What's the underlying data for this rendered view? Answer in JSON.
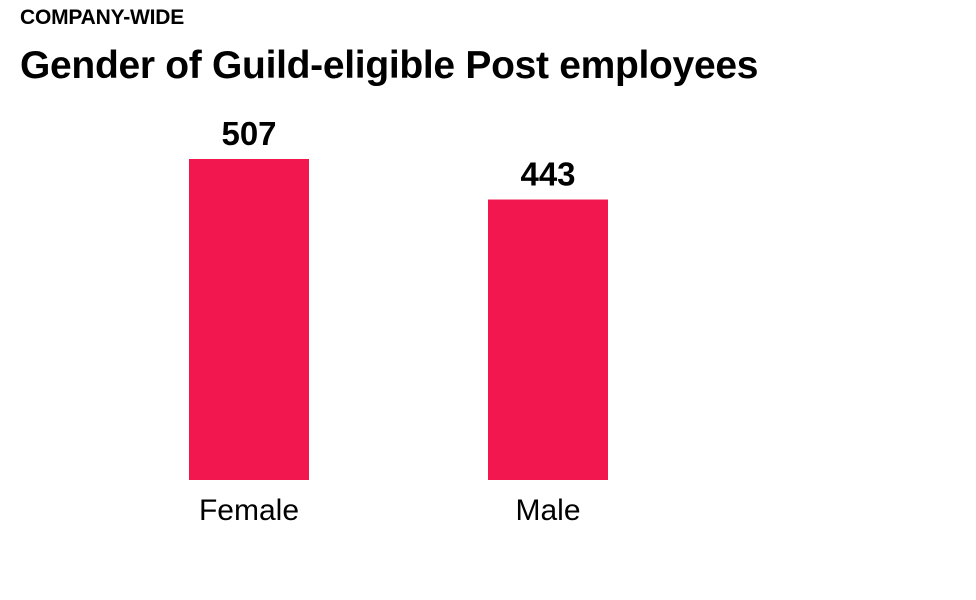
{
  "header": {
    "kicker": "COMPANY-WIDE",
    "title": "Gender of Guild-eligible Post employees"
  },
  "chart_data": {
    "type": "bar",
    "title": "Gender of Guild-eligible Post employees",
    "subtitle": "COMPANY-WIDE",
    "categories": [
      "Female",
      "Male"
    ],
    "values": [
      507,
      443
    ],
    "data_labels": [
      "507",
      "443"
    ],
    "xlabel": "",
    "ylabel": "",
    "ylim": [
      0,
      507
    ],
    "grid": false,
    "legend": "none",
    "bar_color": "#f2184f"
  }
}
